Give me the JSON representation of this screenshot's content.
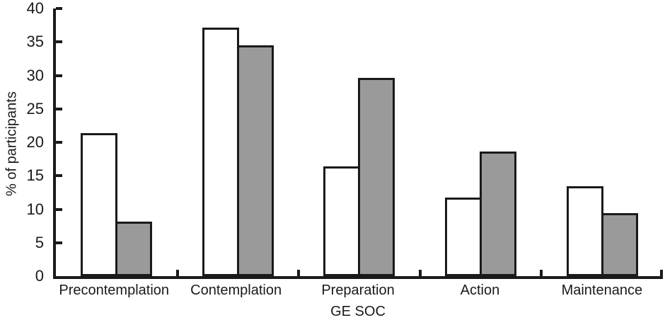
{
  "chart_data": {
    "type": "bar",
    "title": "",
    "xlabel": "GE SOC",
    "ylabel": "% of participants",
    "categories": [
      "Precontemplation",
      "Contemplation",
      "Preparation",
      "Action",
      "Maintenance"
    ],
    "series": [
      {
        "name": "white-bars",
        "fill": "#ffffff",
        "values": [
          21.4,
          37.1,
          16.4,
          11.7,
          13.4
        ]
      },
      {
        "name": "gray-bars",
        "fill": "#9a9a9a",
        "values": [
          8.1,
          34.5,
          29.6,
          18.6,
          9.4
        ]
      }
    ],
    "ylim": [
      0,
      40
    ],
    "yticks": [
      0,
      5,
      10,
      15,
      20,
      25,
      30,
      35,
      40
    ],
    "grid": false,
    "legend": "none",
    "bar_border_color": "#1a1a1a",
    "axis_color": "#1a1a1a"
  }
}
